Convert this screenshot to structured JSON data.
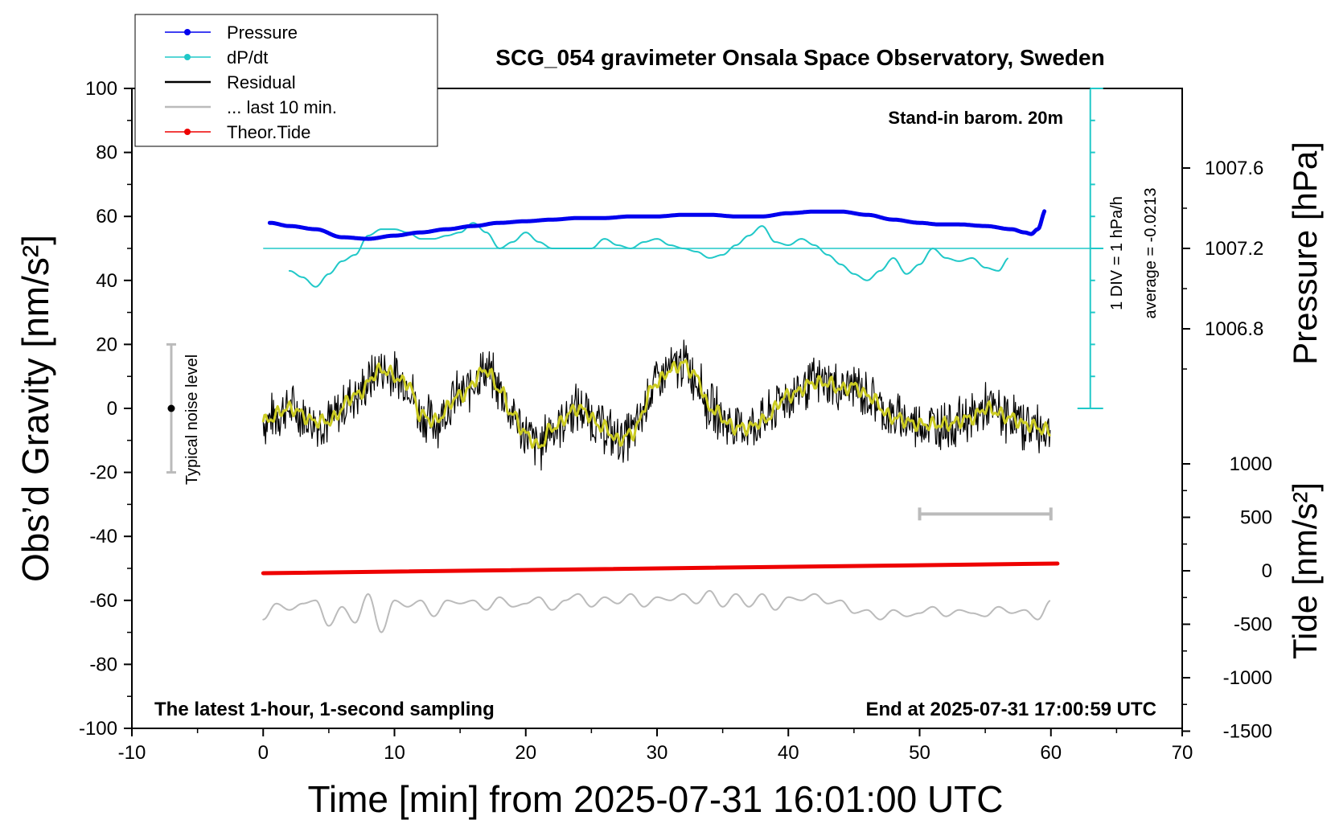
{
  "chart_data": {
    "type": "line",
    "title": "SCG_054 gravimeter Onsala Space Observatory, Sweden",
    "xlabel": "Time [min] from 2025-07-31 16:01:00 UTC",
    "ylabel_left": "Obs’d Gravity [nm/s²]",
    "ylabel_right_pressure": "Pressure [hPa]",
    "ylabel_right_tide": "Tide [nm/s²]",
    "xlim": [
      -10,
      70
    ],
    "ylim": [
      -100,
      100
    ],
    "x_ticks": [
      -10,
      0,
      10,
      20,
      30,
      40,
      50,
      60,
      70
    ],
    "y_ticks": [
      -100,
      -80,
      -60,
      -40,
      -20,
      0,
      20,
      40,
      60,
      80,
      100
    ],
    "pressure_ticks": [
      1007.6,
      1007.2,
      1006.8
    ],
    "tide_ticks": [
      1000,
      500,
      0,
      -500,
      -1000,
      -1500
    ],
    "annotations": {
      "barometer": "Stand-in barom. 20m",
      "div_scale": "1 DIV = 1 hPa/h",
      "average": "average = -0.0213",
      "noise": "Typical noise level",
      "sampling": "The latest 1-hour, 1-second sampling",
      "end_time": "End at 2025-07-31 17:00:59 UTC"
    },
    "legend": [
      {
        "label": "Pressure",
        "color": "#0000ee",
        "marker": true
      },
      {
        "label": "dP/dt",
        "color": "#20c8c8",
        "marker": true
      },
      {
        "label": "Residual",
        "color": "#000000",
        "marker": false
      },
      {
        "label": "... last 10 min.",
        "color": "#bbbbbb",
        "marker": false
      },
      {
        "label": "Theor.Tide",
        "color": "#ee0000",
        "marker": true
      }
    ],
    "series": {
      "pressure": {
        "name": "Pressure",
        "color": "#0000ee",
        "x": [
          0.5,
          2,
          4,
          6,
          8,
          10,
          12,
          14,
          16,
          18,
          20,
          22,
          24,
          26,
          28,
          30,
          32,
          34,
          36,
          38,
          40,
          42,
          44,
          46,
          48,
          50,
          51.5,
          53,
          55,
          57,
          58,
          58.5,
          59,
          59.6
        ],
        "y": [
          58,
          57,
          56,
          53.5,
          53,
          54,
          55,
          56,
          57,
          58,
          58.5,
          59,
          59.5,
          59.5,
          60,
          60,
          60.5,
          60.5,
          60,
          60,
          61,
          61.5,
          61.5,
          60.5,
          59,
          58,
          57.5,
          57.5,
          57,
          56,
          55,
          54.5,
          56,
          62
        ]
      },
      "dpdt": {
        "name": "dP/dt",
        "color": "#20c8c8",
        "x": [
          2,
          3,
          4,
          5,
          6,
          7,
          8,
          9,
          10,
          11,
          12,
          13,
          14,
          15,
          16,
          17,
          18,
          19,
          20,
          21,
          22,
          23,
          24,
          25,
          26,
          27,
          28,
          29,
          30,
          31,
          32,
          33,
          34,
          35,
          36,
          37,
          38,
          39,
          40,
          41,
          42,
          43,
          44,
          45,
          46,
          47,
          48,
          49,
          50,
          51,
          52,
          53,
          54,
          55,
          56,
          56.8
        ],
        "y": [
          43,
          41,
          38,
          42,
          46,
          48,
          54,
          56,
          56,
          55,
          53,
          53,
          54,
          55,
          58,
          55,
          50,
          52,
          55,
          52,
          50,
          50,
          50,
          50,
          53,
          51,
          50,
          52,
          53,
          51,
          50,
          49,
          47,
          48,
          51,
          54,
          57,
          52,
          51,
          53,
          51,
          48,
          45,
          42,
          40,
          43,
          47,
          42,
          45,
          50,
          47,
          46,
          47,
          44,
          43,
          47
        ]
      },
      "dpdt_average": {
        "name": "dP/dt average",
        "y": 50,
        "x": [
          0,
          64
        ]
      },
      "residual": {
        "name": "Residual",
        "color": "#000000",
        "x": [
          0,
          2,
          4,
          5,
          7,
          9,
          11,
          12,
          13,
          15,
          17,
          18,
          19,
          20,
          21,
          22,
          24,
          26,
          27,
          28,
          30,
          31,
          32,
          33,
          34,
          36,
          37,
          38,
          40,
          42,
          43,
          44,
          45,
          46,
          48,
          50,
          52,
          54,
          55,
          57,
          58,
          60
        ],
        "y": [
          -4,
          0,
          -4,
          -4,
          4,
          12,
          8,
          -2,
          -4,
          4,
          12,
          6,
          -2,
          -8,
          -12,
          -6,
          0,
          -6,
          -10,
          -8,
          8,
          12,
          14,
          10,
          0,
          -6,
          -6,
          -4,
          4,
          8,
          8,
          6,
          7,
          4,
          -3,
          -5,
          -5,
          -3,
          0,
          -3,
          -5,
          -7
        ]
      },
      "last10": {
        "name": "... last 10 min.",
        "color": "#bbbbbb",
        "x": [
          0,
          1,
          2,
          3,
          4,
          5,
          6,
          7,
          8,
          9,
          10,
          11,
          12,
          13,
          14,
          15,
          16,
          17,
          18,
          19,
          20,
          21,
          22,
          23,
          24,
          25,
          26,
          27,
          28,
          29,
          30,
          31,
          32,
          33,
          34,
          35,
          36,
          37,
          38,
          39,
          40,
          41,
          42,
          43,
          44,
          45,
          46,
          47,
          48,
          49,
          50,
          51,
          52,
          53,
          54,
          55,
          56,
          57,
          58,
          59,
          60
        ],
        "y": [
          -66,
          -61,
          -63,
          -61,
          -60,
          -68,
          -62,
          -67,
          -58,
          -70,
          -60,
          -62,
          -60,
          -65,
          -60,
          -61,
          -60,
          -63,
          -59,
          -62,
          -61,
          -59,
          -63,
          -60,
          -58,
          -62,
          -59,
          -61,
          -58,
          -62,
          -59,
          -60,
          -58,
          -61,
          -57,
          -62,
          -58,
          -62,
          -58,
          -63,
          -59,
          -60,
          -58,
          -61,
          -60,
          -64,
          -63,
          -66,
          -63,
          -65,
          -64,
          -62,
          -65,
          -63,
          -64,
          -65,
          -62,
          -64,
          -63,
          -66,
          -60
        ]
      },
      "theor_tide": {
        "name": "Theor.Tide",
        "color": "#ee0000",
        "x": [
          0,
          60.5
        ],
        "y": [
          -51.5,
          -48.5
        ]
      }
    },
    "noise_bar": {
      "x": -7,
      "y_low": -20,
      "y_high": 20,
      "center": 0
    },
    "last10_bar": {
      "x_start": 50,
      "x_end": 60,
      "y": -33
    },
    "dpdt_scale": {
      "x": 63,
      "y_low": 0,
      "y_high": 100
    }
  }
}
